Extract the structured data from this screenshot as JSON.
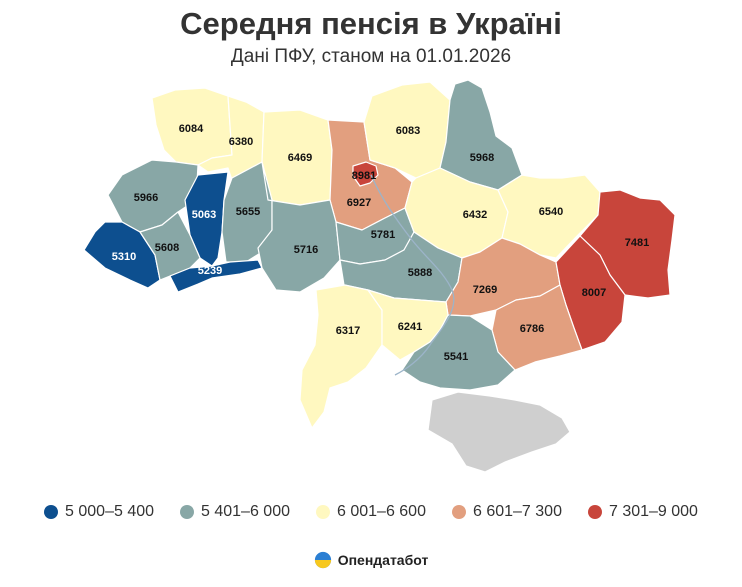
{
  "header": {
    "title": "Середня пенсія в Україні",
    "subtitle": "Дані ПФУ, станом на 01.01.2026"
  },
  "colors": {
    "band1": "#0d4f8f",
    "band2": "#88a7a6",
    "band3": "#fff8c0",
    "band4": "#e29f7f",
    "band5": "#c8453b",
    "no_data": "#cfcfcf",
    "water": "#9cb4c9"
  },
  "legend": [
    {
      "label": "5 000–5 400",
      "color": "#0d4f8f"
    },
    {
      "label": "5 401–6 000",
      "color": "#88a7a6"
    },
    {
      "label": "6 001–6 600",
      "color": "#fff8c0"
    },
    {
      "label": "6 601–7 300",
      "color": "#e29f7f"
    },
    {
      "label": "7 301–9 000",
      "color": "#c8453b"
    }
  ],
  "regions": [
    {
      "id": "volyn",
      "value": 6084
    },
    {
      "id": "rivne",
      "value": 6380
    },
    {
      "id": "zhytomyr",
      "value": 6469
    },
    {
      "id": "kyiv-oblast",
      "value": 6927
    },
    {
      "id": "kyiv-city",
      "value": 8981
    },
    {
      "id": "chernihiv",
      "value": 6083
    },
    {
      "id": "sumy",
      "value": 5968
    },
    {
      "id": "lviv",
      "value": 5966
    },
    {
      "id": "ternopil",
      "value": 5063
    },
    {
      "id": "khmelnytskyi",
      "value": 5655
    },
    {
      "id": "zakarpattia",
      "value": 5310
    },
    {
      "id": "ivano-frankivsk",
      "value": 5608
    },
    {
      "id": "chernivtsi",
      "value": 5239
    },
    {
      "id": "vinnytsia",
      "value": 5716
    },
    {
      "id": "cherkasy",
      "value": 5781
    },
    {
      "id": "poltava",
      "value": 6432
    },
    {
      "id": "kharkiv",
      "value": 6540
    },
    {
      "id": "luhansk",
      "value": 7481
    },
    {
      "id": "kirovohrad",
      "value": 5888
    },
    {
      "id": "dnipropetrovsk",
      "value": 7269
    },
    {
      "id": "donetsk",
      "value": 8007
    },
    {
      "id": "zaporizhzhia",
      "value": 6786
    },
    {
      "id": "odesa",
      "value": 6317
    },
    {
      "id": "mykolaiv",
      "value": 6241
    },
    {
      "id": "kherson",
      "value": 5541
    }
  ],
  "brand": {
    "name": "Опендатабот"
  }
}
